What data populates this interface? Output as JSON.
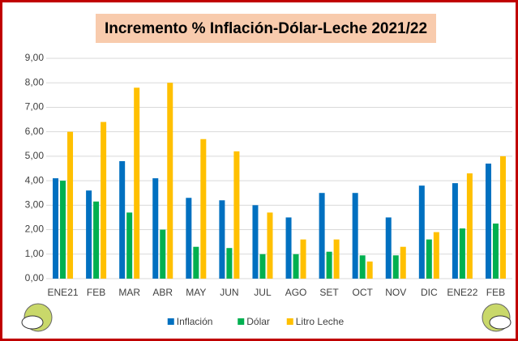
{
  "chart_data": {
    "type": "bar",
    "title": "Incremento % Inflación-Dólar-Leche 2021/22",
    "categories": [
      "ENE21",
      "FEB",
      "MAR",
      "ABR",
      "MAY",
      "JUN",
      "JUL",
      "AGO",
      "SET",
      "OCT",
      "NOV",
      "DIC",
      "ENE22",
      "FEB"
    ],
    "series": [
      {
        "name": "Inflación",
        "color": "#0070c0",
        "values": [
          4.1,
          3.6,
          4.8,
          4.1,
          3.3,
          3.2,
          3.0,
          2.5,
          3.5,
          3.5,
          2.5,
          3.8,
          3.9,
          4.7
        ]
      },
      {
        "name": "Dólar",
        "color": "#00b050",
        "values": [
          4.0,
          3.15,
          2.7,
          2.0,
          1.3,
          1.25,
          1.0,
          1.0,
          1.1,
          0.95,
          0.95,
          1.6,
          2.05,
          2.25
        ]
      },
      {
        "name": "Litro Leche",
        "color": "#ffc000",
        "values": [
          6.0,
          6.4,
          7.8,
          8.0,
          5.7,
          5.2,
          2.7,
          1.6,
          1.6,
          0.7,
          1.3,
          1.9,
          4.3,
          5.0
        ]
      }
    ],
    "ylim": [
      0,
      9
    ],
    "yticks": [
      {
        "value": 0,
        "label": "0,00"
      },
      {
        "value": 1,
        "label": "1,00"
      },
      {
        "value": 2,
        "label": "2,00"
      },
      {
        "value": 3,
        "label": "3,00"
      },
      {
        "value": 4,
        "label": "4,00"
      },
      {
        "value": 5,
        "label": "5,00"
      },
      {
        "value": 6,
        "label": "6,00"
      },
      {
        "value": 7,
        "label": "7,00"
      },
      {
        "value": 8,
        "label": "8,00"
      },
      {
        "value": 9,
        "label": "9,00"
      }
    ],
    "grid": true
  }
}
